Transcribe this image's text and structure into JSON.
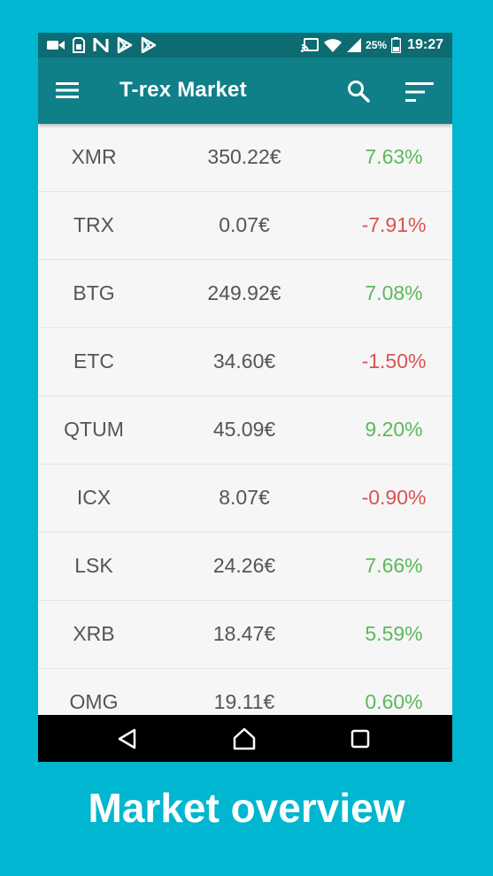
{
  "status_bar": {
    "battery_percent": "25%",
    "time": "19:27",
    "icons": [
      "video-icon",
      "sim-icon",
      "n-icon",
      "play-store-icon",
      "play-store-icon",
      "cast-icon",
      "wifi-icon",
      "signal-icon",
      "battery-icon"
    ]
  },
  "app_bar": {
    "title": "T-rex Market",
    "icons": [
      "menu-icon",
      "search-icon",
      "sort-icon"
    ]
  },
  "market": {
    "rows": [
      {
        "symbol": "XMR",
        "price": "350.22€",
        "change": "7.63%",
        "direction": "up"
      },
      {
        "symbol": "TRX",
        "price": "0.07€",
        "change": "-7.91%",
        "direction": "down"
      },
      {
        "symbol": "BTG",
        "price": "249.92€",
        "change": "7.08%",
        "direction": "up"
      },
      {
        "symbol": "ETC",
        "price": "34.60€",
        "change": "-1.50%",
        "direction": "down"
      },
      {
        "symbol": "QTUM",
        "price": "45.09€",
        "change": "9.20%",
        "direction": "up"
      },
      {
        "symbol": "ICX",
        "price": "8.07€",
        "change": "-0.90%",
        "direction": "down"
      },
      {
        "symbol": "LSK",
        "price": "24.26€",
        "change": "7.66%",
        "direction": "up"
      },
      {
        "symbol": "XRB",
        "price": "18.47€",
        "change": "5.59%",
        "direction": "up"
      },
      {
        "symbol": "OMG",
        "price": "19.11€",
        "change": "0.60%",
        "direction": "up"
      }
    ]
  },
  "nav_bar": {
    "icons": [
      "back-icon",
      "home-icon",
      "recents-icon"
    ]
  },
  "caption": "Market overview",
  "colors": {
    "background": "#00b6d0",
    "status_bar": "#0d6b72",
    "app_bar": "#0f8088",
    "positive": "#5cb85c",
    "negative": "#d9534f",
    "row_text": "#555555"
  }
}
